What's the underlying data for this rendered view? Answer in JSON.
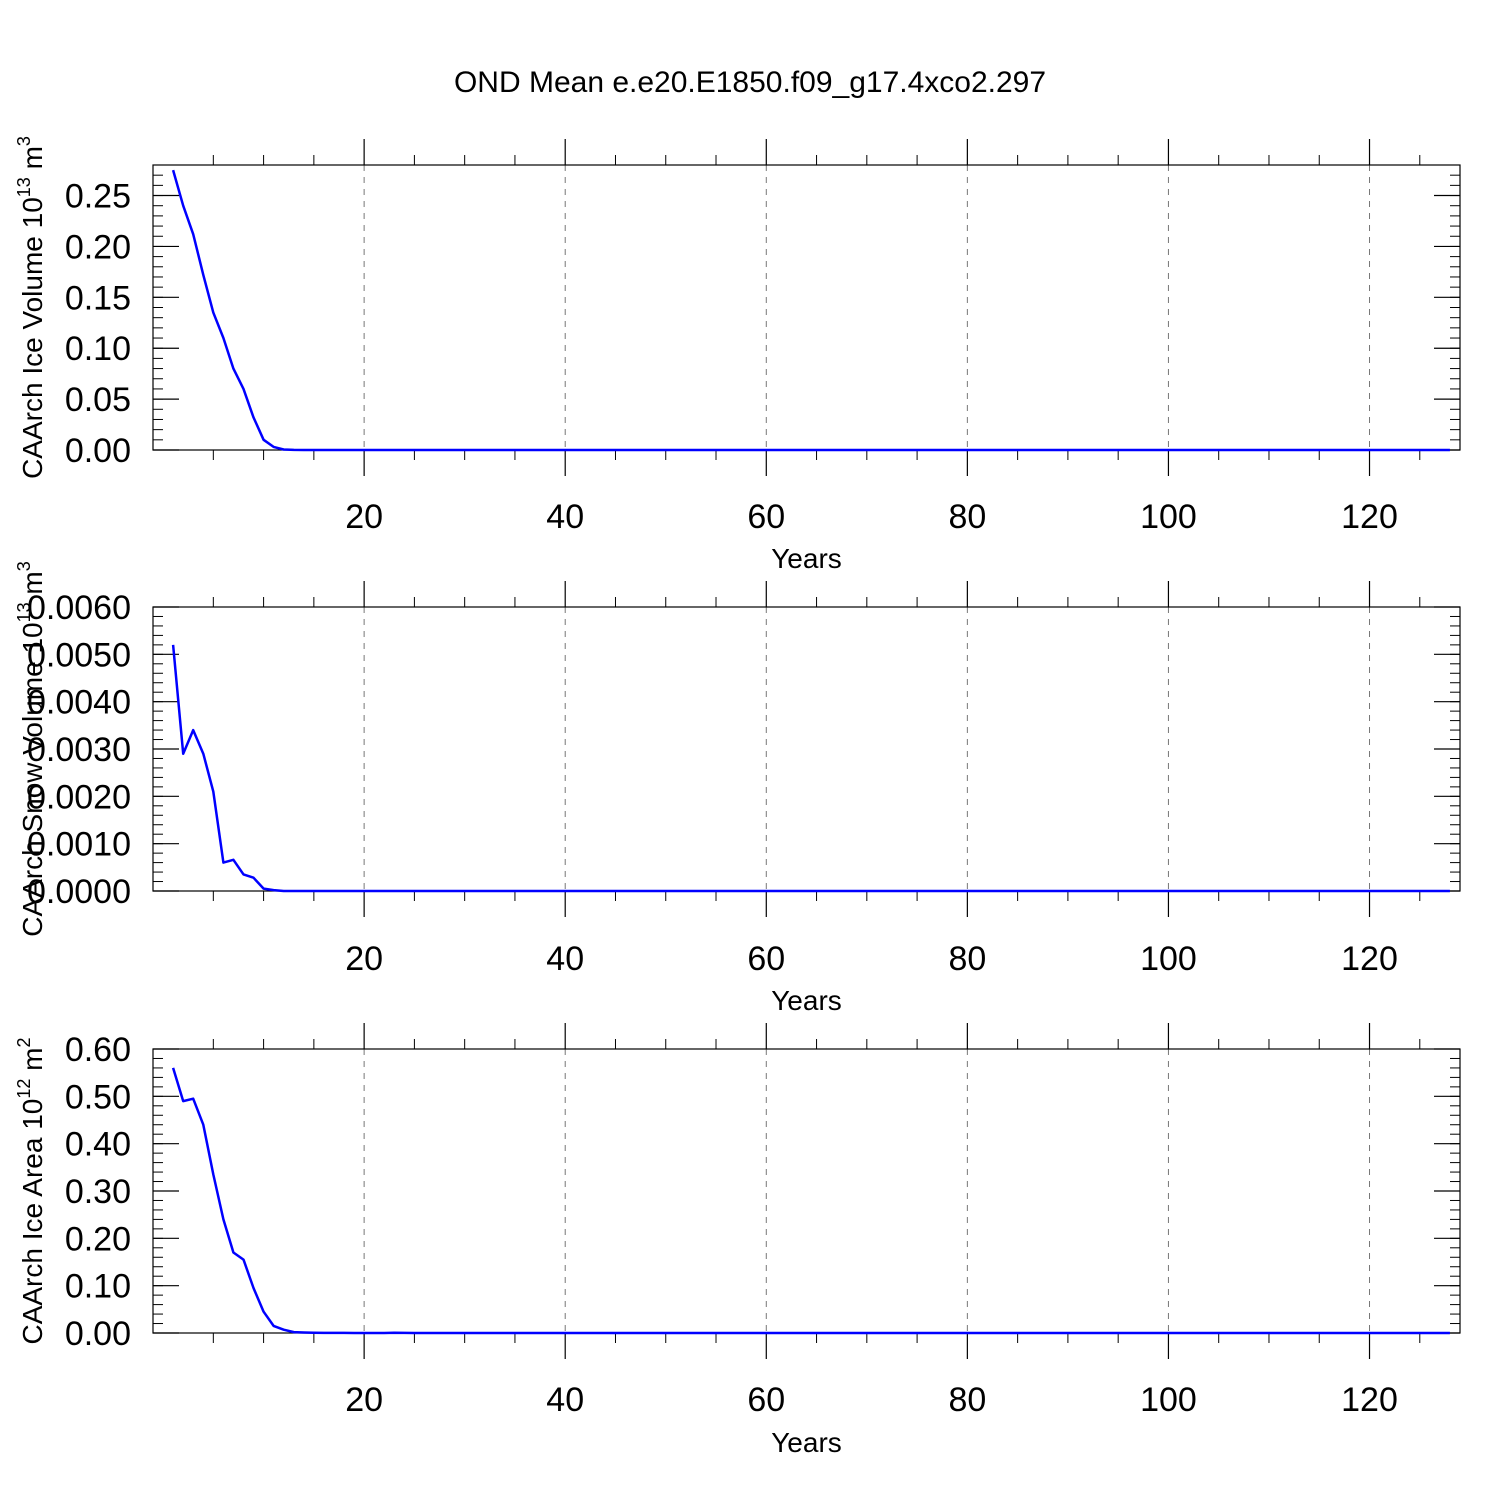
{
  "title": "OND Mean e.e20.E1850.f09_g17.4xco2.297",
  "colors": {
    "line": "#0000ff",
    "axis": "#000000",
    "grid": "#777777"
  },
  "chart_data": [
    {
      "type": "line",
      "xlabel": "Years",
      "ylabel": {
        "text": "CAArch Ice Volume 10",
        "exp": "13",
        "unit": " m",
        "unit_exp": "3"
      },
      "xlim": [
        -1,
        129
      ],
      "ylim": [
        0,
        0.28
      ],
      "xticks": [
        20,
        40,
        60,
        80,
        100,
        120
      ],
      "yticks": [
        0,
        0.05,
        0.1,
        0.15,
        0.2,
        0.25
      ],
      "ytick_labels": [
        "0.00",
        "0.05",
        "0.10",
        "0.15",
        "0.20",
        "0.25"
      ],
      "grid": "x-dashed",
      "series": [
        {
          "values": [
            0.275,
            0.24,
            0.212,
            0.172,
            0.135,
            0.11,
            0.08,
            0.06,
            0.032,
            0.01,
            0.003,
            0.0005,
            0.0001,
            0,
            0
          ]
        }
      ]
    },
    {
      "type": "line",
      "xlabel": "Years",
      "ylabel": {
        "text": "CAArch Snow Volume 10",
        "exp": "13",
        "unit": " m",
        "unit_exp": "3"
      },
      "xlim": [
        -1,
        129
      ],
      "ylim": [
        0,
        0.006
      ],
      "xticks": [
        20,
        40,
        60,
        80,
        100,
        120
      ],
      "yticks": [
        0,
        0.001,
        0.002,
        0.003,
        0.004,
        0.005,
        0.006
      ],
      "ytick_labels": [
        "0.0000",
        "0.0010",
        "0.0020",
        "0.0030",
        "0.0040",
        "0.0050",
        "0.0060"
      ],
      "grid": "x-dashed",
      "series": [
        {
          "values": [
            0.0052,
            0.0029,
            0.0034,
            0.0029,
            0.0021,
            0.0006,
            0.00066,
            0.00035,
            0.00028,
            5e-05,
            2e-05,
            0,
            0,
            0,
            0
          ]
        }
      ]
    },
    {
      "type": "line",
      "xlabel": "Years",
      "ylabel": {
        "text": "CAArch Ice Area 10",
        "exp": "12",
        "unit": " m",
        "unit_exp": "2"
      },
      "xlim": [
        -1,
        129
      ],
      "ylim": [
        0,
        0.6
      ],
      "xticks": [
        20,
        40,
        60,
        80,
        100,
        120
      ],
      "yticks": [
        0,
        0.1,
        0.2,
        0.3,
        0.4,
        0.5,
        0.6
      ],
      "ytick_labels": [
        "0.00",
        "0.10",
        "0.20",
        "0.30",
        "0.40",
        "0.50",
        "0.60"
      ],
      "grid": "x-dashed",
      "series": [
        {
          "values": [
            0.56,
            0.49,
            0.495,
            0.44,
            0.335,
            0.24,
            0.17,
            0.155,
            0.095,
            0.045,
            0.015,
            0.007,
            0.002,
            0.001,
            0.0005,
            0.0003,
            0.0002,
            0.0002,
            0.0001,
            0.0001,
            0.0001,
            0.0001,
            0.0005,
            0.0002,
            0.0001,
            0
          ]
        }
      ]
    }
  ]
}
